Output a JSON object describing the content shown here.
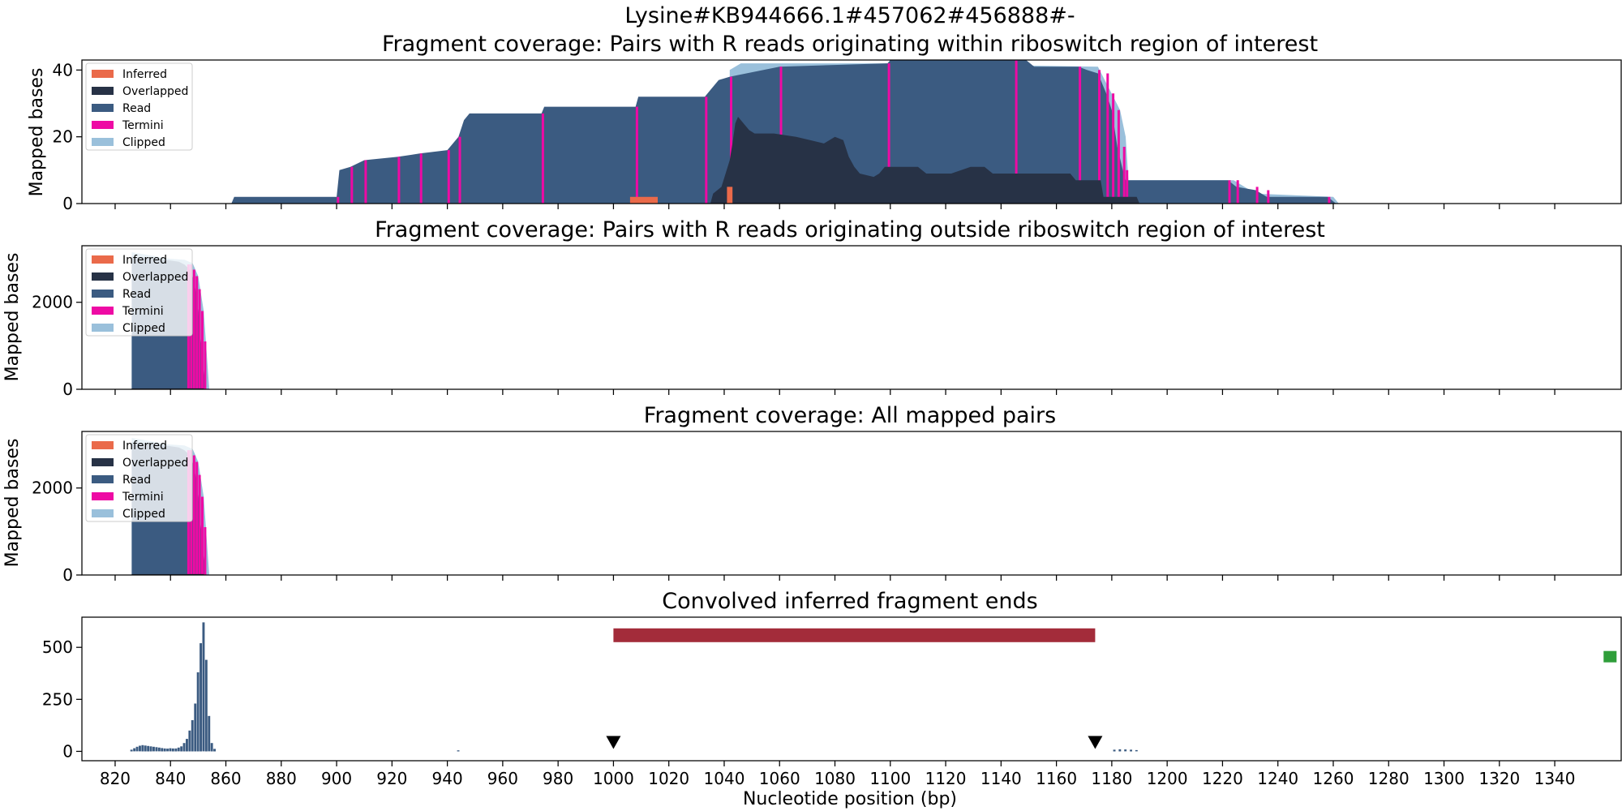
{
  "figure": {
    "suptitle": "Lysine#KB944666.1#457062#456888#-",
    "xlabel": "Nucleotide position (bp)"
  },
  "colors": {
    "Inferred": "#ea6a4a",
    "Overlapped": "#273246",
    "Read": "#3b5b81",
    "Termini": "#ee0aa4",
    "Clipped": "#9ac0db",
    "region_bar": "#a32c3a",
    "green_marker": "#2f9e3a",
    "marker": "#000000"
  },
  "legend_labels": [
    "Inferred",
    "Overlapped",
    "Read",
    "Termini",
    "Clipped"
  ],
  "chart_data": [
    {
      "type": "area",
      "title": "Fragment coverage: Pairs with R reads originating within riboswitch region of interest",
      "ylabel": "Mapped bases",
      "xlim": [
        808,
        1364
      ],
      "ylim": [
        0,
        43
      ],
      "yticks": [
        0,
        20,
        40
      ],
      "legend": "top-left",
      "layers": {
        "Clipped": [
          [
            1042,
            40
          ],
          [
            1046,
            42
          ],
          [
            1100,
            42
          ],
          [
            1175,
            41
          ],
          [
            1183,
            28
          ],
          [
            1185,
            20
          ],
          [
            1186,
            7
          ],
          [
            1224,
            7
          ],
          [
            1232,
            3
          ],
          [
            1260,
            2
          ],
          [
            1262,
            0
          ]
        ],
        "Read": [
          [
            862,
            0
          ],
          [
            863,
            2
          ],
          [
            900,
            2
          ],
          [
            901,
            10
          ],
          [
            905,
            11
          ],
          [
            910,
            13
          ],
          [
            922,
            14
          ],
          [
            930,
            15
          ],
          [
            940,
            16
          ],
          [
            944,
            20
          ],
          [
            946,
            25
          ],
          [
            948,
            27
          ],
          [
            974,
            27
          ],
          [
            975,
            29
          ],
          [
            1008,
            29
          ],
          [
            1009,
            32
          ],
          [
            1033,
            32
          ],
          [
            1035,
            34
          ],
          [
            1038,
            37
          ],
          [
            1042,
            38
          ],
          [
            1048,
            39
          ],
          [
            1060,
            41
          ],
          [
            1099,
            42
          ],
          [
            1100,
            43
          ],
          [
            1145,
            43
          ],
          [
            1149,
            43
          ],
          [
            1152,
            41
          ],
          [
            1168,
            41
          ],
          [
            1171,
            40
          ],
          [
            1175,
            39
          ],
          [
            1178,
            33
          ],
          [
            1180,
            28
          ],
          [
            1182,
            17
          ],
          [
            1184,
            10
          ],
          [
            1185,
            7
          ],
          [
            1222,
            7
          ],
          [
            1225,
            5
          ],
          [
            1232,
            4
          ],
          [
            1236,
            2
          ],
          [
            1258,
            2
          ],
          [
            1261,
            0
          ]
        ],
        "Overlapped": [
          [
            1035,
            0
          ],
          [
            1036,
            3
          ],
          [
            1039,
            5
          ],
          [
            1042,
            13
          ],
          [
            1043,
            18
          ],
          [
            1044,
            24
          ],
          [
            1045,
            26
          ],
          [
            1049,
            22
          ],
          [
            1051,
            21
          ],
          [
            1058,
            21
          ],
          [
            1066,
            20
          ],
          [
            1071,
            19
          ],
          [
            1076,
            18
          ],
          [
            1080,
            20
          ],
          [
            1083,
            19
          ],
          [
            1085,
            14
          ],
          [
            1087,
            11
          ],
          [
            1089,
            9
          ],
          [
            1094,
            8
          ],
          [
            1096,
            9
          ],
          [
            1098,
            11
          ],
          [
            1110,
            11
          ],
          [
            1113,
            9
          ],
          [
            1122,
            9
          ],
          [
            1129,
            11
          ],
          [
            1134,
            11
          ],
          [
            1137,
            9
          ],
          [
            1165,
            9
          ],
          [
            1167,
            7
          ],
          [
            1176,
            7
          ],
          [
            1177,
            2
          ],
          [
            1189,
            2
          ],
          [
            1190,
            0
          ]
        ],
        "Termini_edges": [
          862.5,
          900.5,
          905.5,
          910.5,
          922.5,
          930.5,
          940.5,
          944.5,
          974.5,
          1008.5,
          1033.5,
          1042.5,
          1060.5,
          1099.5,
          1145.5,
          1168.5,
          1175.5,
          1178.5,
          1180.5,
          1182.5,
          1184.5,
          1185.5,
          1222.5,
          1225.5,
          1232.5,
          1236.5,
          1258.5
        ],
        "Inferred": [
          [
            1006,
            0
          ],
          [
            1006,
            2
          ],
          [
            1016,
            2
          ],
          [
            1016,
            0
          ],
          [
            1041,
            0
          ],
          [
            1041,
            5
          ],
          [
            1043,
            5
          ],
          [
            1043,
            0
          ]
        ]
      }
    },
    {
      "type": "area",
      "title": "Fragment coverage: Pairs with R reads originating outside riboswitch region of interest",
      "ylabel": "Mapped bases",
      "xlim": [
        808,
        1364
      ],
      "ylim": [
        0,
        3300
      ],
      "yticks": [
        0,
        2000
      ],
      "legend": "top-left",
      "layers": {
        "Clipped": [
          [
            826,
            3150
          ],
          [
            840,
            3000
          ],
          [
            845,
            2980
          ],
          [
            848,
            2900
          ],
          [
            850,
            2600
          ],
          [
            852,
            1800
          ],
          [
            853,
            900
          ],
          [
            854,
            0
          ]
        ],
        "Read": [
          [
            826,
            0
          ],
          [
            826,
            3050
          ],
          [
            835,
            3010
          ],
          [
            840,
            2960
          ],
          [
            843,
            2930
          ],
          [
            845,
            2870
          ],
          [
            847,
            2750
          ],
          [
            848,
            2600
          ],
          [
            849,
            2300
          ],
          [
            850,
            1800
          ],
          [
            851,
            1100
          ],
          [
            852,
            400
          ],
          [
            852.5,
            0
          ]
        ],
        "Overlapped": [
          [
            826,
            0
          ],
          [
            826,
            20
          ],
          [
            852,
            20
          ],
          [
            852,
            0
          ]
        ],
        "Termini_edges": [
          846.5,
          847.5,
          848.5,
          849.5,
          850.5,
          851.5,
          852.5
        ],
        "Inferred": []
      }
    },
    {
      "type": "area",
      "title": "Fragment coverage: All mapped pairs",
      "ylabel": "Mapped bases",
      "xlim": [
        808,
        1364
      ],
      "ylim": [
        0,
        3300
      ],
      "yticks": [
        0,
        2000
      ],
      "legend": "top-left",
      "layers": {
        "Clipped": [
          [
            826,
            3150
          ],
          [
            840,
            3000
          ],
          [
            845,
            2980
          ],
          [
            848,
            2900
          ],
          [
            850,
            2600
          ],
          [
            852,
            1800
          ],
          [
            853,
            900
          ],
          [
            854,
            0
          ]
        ],
        "Read": [
          [
            826,
            0
          ],
          [
            826,
            3050
          ],
          [
            835,
            3010
          ],
          [
            840,
            2960
          ],
          [
            843,
            2930
          ],
          [
            845,
            2870
          ],
          [
            847,
            2750
          ],
          [
            848,
            2600
          ],
          [
            849,
            2300
          ],
          [
            850,
            1800
          ],
          [
            851,
            1100
          ],
          [
            852,
            400
          ],
          [
            852.5,
            0
          ]
        ],
        "Overlapped": [
          [
            826,
            0
          ],
          [
            826,
            20
          ],
          [
            852,
            20
          ],
          [
            852,
            0
          ]
        ],
        "Termini_edges": [
          846.5,
          847.5,
          848.5,
          849.5,
          850.5,
          851.5,
          852.5
        ],
        "Inferred": []
      }
    },
    {
      "type": "bar",
      "title": "Convolved inferred fragment ends",
      "ylabel": "",
      "xlim": [
        808,
        1364
      ],
      "ylim": [
        -45,
        645
      ],
      "yticks": [
        0,
        250,
        500
      ],
      "bars": [
        [
          826,
          8
        ],
        [
          827,
          15
        ],
        [
          828,
          22
        ],
        [
          829,
          27
        ],
        [
          830,
          30
        ],
        [
          831,
          28
        ],
        [
          832,
          26
        ],
        [
          833,
          24
        ],
        [
          834,
          22
        ],
        [
          835,
          20
        ],
        [
          836,
          18
        ],
        [
          837,
          16
        ],
        [
          838,
          14
        ],
        [
          839,
          13
        ],
        [
          840,
          15
        ],
        [
          841,
          14
        ],
        [
          842,
          14
        ],
        [
          843,
          18
        ],
        [
          844,
          24
        ],
        [
          845,
          40
        ],
        [
          846,
          60
        ],
        [
          847,
          100
        ],
        [
          848,
          150
        ],
        [
          849,
          230
        ],
        [
          850,
          380
        ],
        [
          851,
          520
        ],
        [
          852,
          620
        ],
        [
          853,
          440
        ],
        [
          854,
          170
        ],
        [
          855,
          40
        ],
        [
          856,
          12
        ],
        [
          944,
          5
        ],
        [
          1181,
          8
        ],
        [
          1183,
          10
        ],
        [
          1185,
          9
        ],
        [
          1187,
          8
        ],
        [
          1189,
          6
        ]
      ],
      "region": [
        1000,
        1174
      ],
      "region_y": 560,
      "markers_x": [
        1000,
        1174
      ],
      "green_marker": {
        "x": 1360,
        "y": 455
      }
    }
  ],
  "xticks": [
    820,
    840,
    860,
    880,
    900,
    920,
    940,
    960,
    980,
    1000,
    1020,
    1040,
    1060,
    1080,
    1100,
    1120,
    1140,
    1160,
    1180,
    1200,
    1220,
    1240,
    1260,
    1280,
    1300,
    1320,
    1340
  ]
}
